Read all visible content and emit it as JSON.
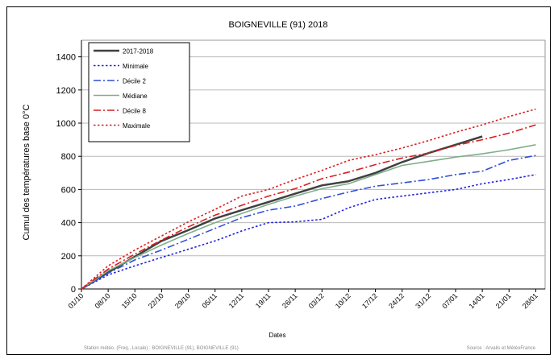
{
  "chart_data": {
    "type": "line",
    "title": "BOIGNEVILLE (91) 2018",
    "xlabel": "Dates",
    "ylabel": "Cumul des températures base 0°C",
    "ylim": [
      0,
      1500
    ],
    "yticks": [
      0,
      200,
      400,
      600,
      800,
      1000,
      1200,
      1400
    ],
    "categories": [
      "01/10",
      "08/10",
      "15/10",
      "22/10",
      "29/10",
      "05/11",
      "12/11",
      "19/11",
      "26/11",
      "03/12",
      "10/12",
      "17/12",
      "24/12",
      "31/12",
      "07/01",
      "14/01",
      "21/01",
      "28/01"
    ],
    "grid": "horizontal",
    "legend_position": "top-left",
    "series": [
      {
        "name": "2017-2018",
        "color": "#404040",
        "dash": "solid",
        "width": 2.5,
        "values": [
          0,
          100,
          195,
          290,
          355,
          425,
          475,
          525,
          575,
          625,
          650,
          700,
          765,
          820,
          870,
          920,
          null,
          null
        ]
      },
      {
        "name": "Minimale",
        "color": "#1f1fe0",
        "dash": "dot",
        "width": 1.6,
        "values": [
          0,
          85,
          140,
          190,
          240,
          290,
          350,
          400,
          405,
          420,
          490,
          540,
          560,
          580,
          600,
          635,
          660,
          690
        ]
      },
      {
        "name": "Décile 2",
        "color": "#2f4fd8",
        "dash": "dashdot",
        "width": 1.6,
        "values": [
          0,
          95,
          175,
          235,
          300,
          365,
          430,
          475,
          500,
          545,
          585,
          620,
          640,
          660,
          690,
          710,
          775,
          805
        ]
      },
      {
        "name": "Médiane",
        "color": "#7fae8a",
        "dash": "solid",
        "width": 1.6,
        "values": [
          0,
          110,
          190,
          265,
          335,
          400,
          455,
          510,
          560,
          605,
          635,
          690,
          745,
          770,
          795,
          815,
          840,
          870
        ]
      },
      {
        "name": "Décile 8",
        "color": "#d81f1f",
        "dash": "dashdot",
        "width": 1.6,
        "values": [
          0,
          120,
          210,
          295,
          375,
          445,
          505,
          560,
          605,
          665,
          705,
          750,
          790,
          820,
          865,
          900,
          940,
          990
        ]
      },
      {
        "name": "Maximale",
        "color": "#d81f1f",
        "dash": "dot",
        "width": 1.6,
        "values": [
          0,
          140,
          235,
          320,
          405,
          480,
          560,
          600,
          660,
          715,
          775,
          810,
          850,
          895,
          945,
          990,
          1040,
          1085
        ]
      }
    ]
  },
  "footer": {
    "source_left": "Station météo. (Freq., Locale) : BOIGNEVILLE (91), BOIGNEVILLE (91)",
    "source_right": "Source : Arvalis et MétéoFrance"
  }
}
